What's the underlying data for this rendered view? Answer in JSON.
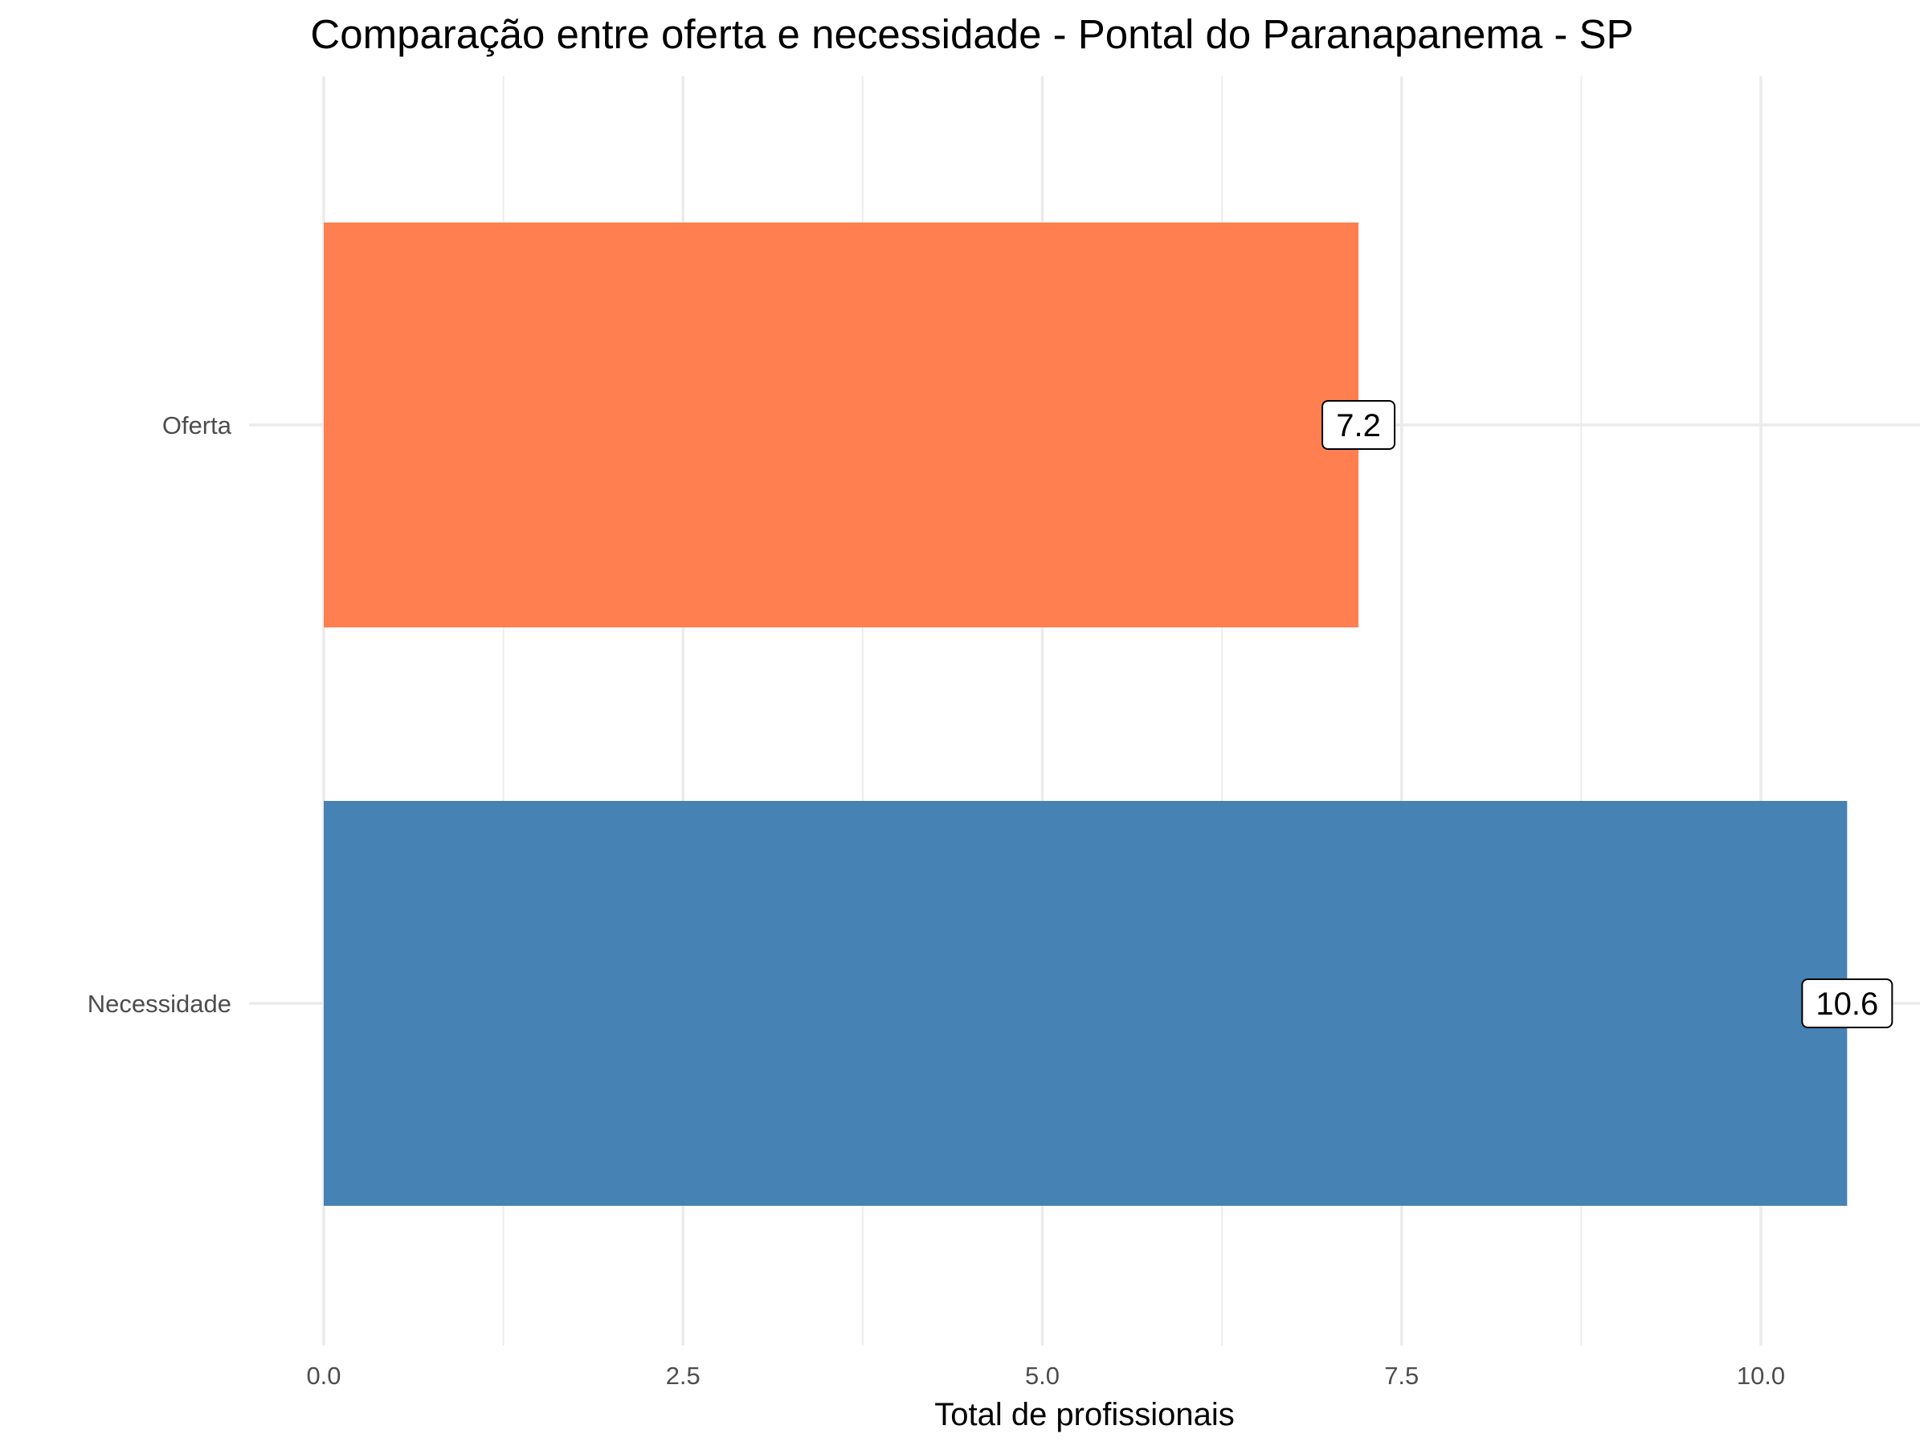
{
  "chart_data": {
    "type": "bar",
    "orientation": "horizontal",
    "title": "Comparação entre oferta e necessidade - Pontal do Paranapanema - SP",
    "xlabel": "Total de profissionais",
    "ylabel": "",
    "categories": [
      "Oferta",
      "Necessidade"
    ],
    "values": [
      7.2,
      10.6
    ],
    "value_labels": [
      "7.2",
      "10.6"
    ],
    "colors": [
      "#FF7F50",
      "#4682B4"
    ],
    "xlim": [
      0,
      11.15
    ],
    "x_ticks": [
      0,
      2.5,
      5,
      7.5,
      10
    ],
    "x_tick_labels": [
      "0.0",
      "2.5",
      "5.0",
      "7.5",
      "10.0"
    ],
    "grid": true,
    "legend": "none"
  }
}
